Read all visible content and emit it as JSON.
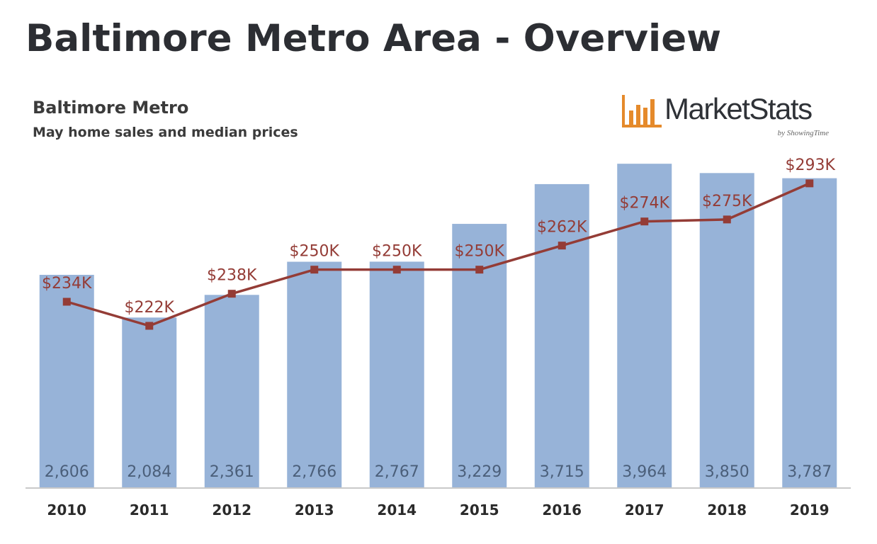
{
  "header": {
    "title": "Baltimore Metro Area - Overview"
  },
  "brand": {
    "name": "MarketStats",
    "byline": "by ShowingTime",
    "icon": "bar-chart-logo-icon",
    "color": "#e58a2b"
  },
  "chart_data": {
    "type": "bar",
    "title": "Baltimore Metro",
    "subtitle": "May home sales and median prices",
    "categories": [
      "2010",
      "2011",
      "2012",
      "2013",
      "2014",
      "2015",
      "2016",
      "2017",
      "2018",
      "2019"
    ],
    "series": [
      {
        "name": "Home sales",
        "kind": "bar",
        "color": "#97b3d8",
        "values": [
          2606,
          2084,
          2361,
          2766,
          2767,
          3229,
          3715,
          3964,
          3850,
          3787
        ],
        "labels": [
          "2,606",
          "2,084",
          "2,361",
          "2,766",
          "2,767",
          "3,229",
          "3,715",
          "3,964",
          "3,850",
          "3,787"
        ]
      },
      {
        "name": "Median price",
        "kind": "line",
        "color": "#943c36",
        "values": [
          234,
          222,
          238,
          250,
          250,
          250,
          262,
          274,
          275,
          293
        ],
        "labels": [
          "$234K",
          "$222K",
          "$238K",
          "$250K",
          "$250K",
          "$250K",
          "$262K",
          "$274K",
          "$275K",
          "$293K"
        ]
      }
    ],
    "xlabel": "",
    "ylabel": "",
    "grid": false,
    "legend": "none"
  }
}
